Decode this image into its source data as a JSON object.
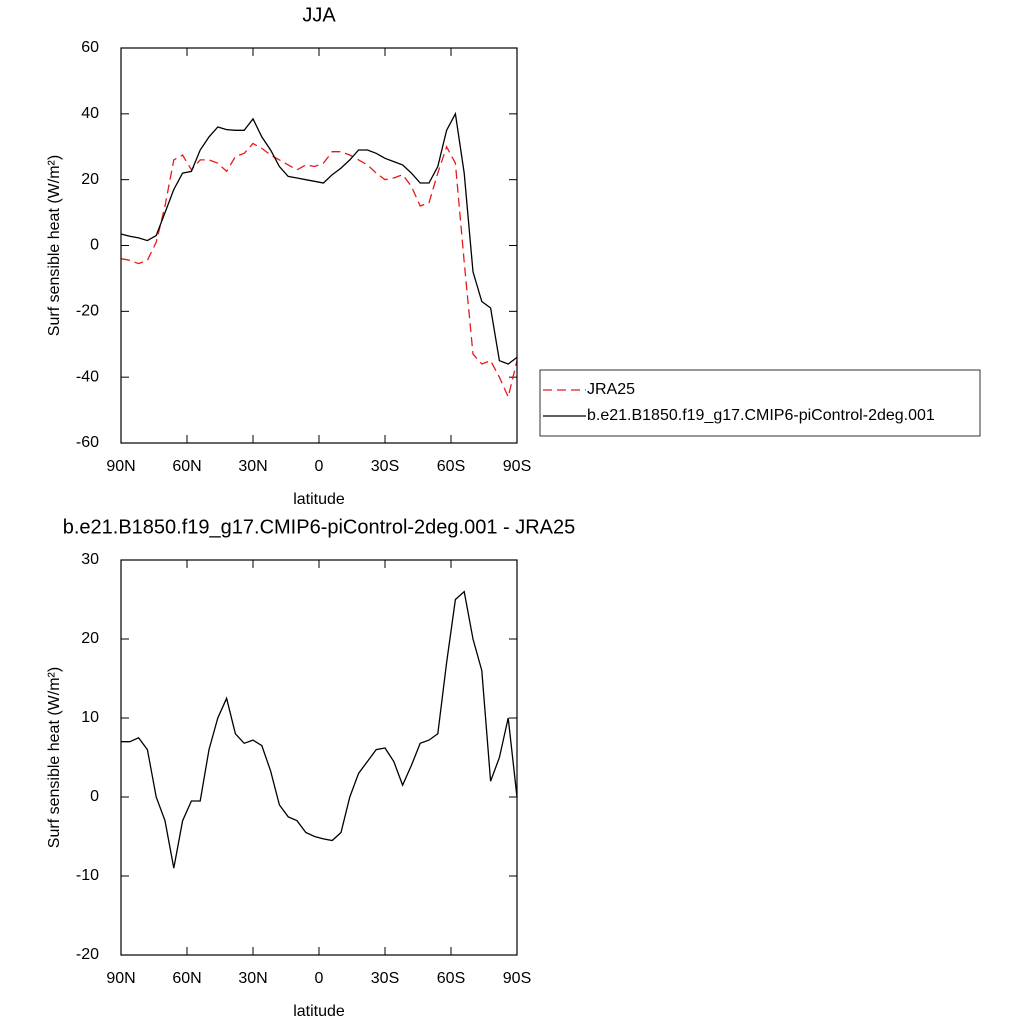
{
  "chart_data": [
    {
      "type": "line",
      "title": "JJA",
      "xlabel": "latitude",
      "ylabel": "Surf sensible heat (W/m²)",
      "x": [
        90,
        86,
        82,
        78,
        74,
        70,
        66,
        62,
        58,
        54,
        50,
        46,
        42,
        38,
        34,
        30,
        26,
        22,
        18,
        14,
        10,
        6,
        2,
        -2,
        -6,
        -10,
        -14,
        -18,
        -22,
        -26,
        -30,
        -34,
        -38,
        -42,
        -46,
        -50,
        -54,
        -58,
        -62,
        -66,
        -70,
        -74,
        -78,
        -82,
        -86,
        -90
      ],
      "series": [
        {
          "name": "JRA25",
          "color": "#e8191b",
          "line_style": "dashed",
          "values": [
            -4,
            -4.5,
            -5.5,
            -4.5,
            1,
            12,
            26,
            27.5,
            23,
            26,
            26,
            25,
            22.5,
            27,
            28,
            31,
            29.5,
            27.5,
            26,
            24.5,
            23,
            24.5,
            24,
            25,
            28.5,
            28.5,
            27.5,
            26,
            24.5,
            22,
            20,
            20.5,
            21.5,
            18,
            12,
            13,
            22,
            30,
            25,
            -5,
            -33,
            -36,
            -35,
            -40,
            -46,
            -35
          ]
        },
        {
          "name": "b.e21.B1850.f19_g17.CMIP6-piControl-2deg.001",
          "color": "#000000",
          "line_style": "solid",
          "values": [
            3.5,
            2.8,
            2.3,
            1.5,
            3,
            10,
            17,
            22,
            22.5,
            29,
            33,
            36,
            35.2,
            35,
            35,
            38.5,
            33,
            29,
            24,
            21,
            20.5,
            20,
            19.5,
            19,
            21.5,
            23.5,
            26,
            29,
            29,
            28,
            26.5,
            25.5,
            24.5,
            22,
            19,
            19,
            24,
            35,
            40,
            22,
            -8,
            -17,
            -19,
            -35,
            -36,
            -34
          ]
        }
      ],
      "xlim": [
        90,
        -90
      ],
      "xticks": [
        {
          "value": 90,
          "label": "90N"
        },
        {
          "value": 60,
          "label": "60N"
        },
        {
          "value": 30,
          "label": "30N"
        },
        0,
        {
          "value": -30,
          "label": "30S"
        },
        {
          "value": -60,
          "label": "60S"
        },
        {
          "value": -90,
          "label": "90S"
        }
      ],
      "ylim": [
        -60,
        60
      ],
      "yticks": [
        -60,
        -40,
        -20,
        0,
        20,
        40,
        60
      ],
      "legend": "right"
    },
    {
      "type": "line",
      "title": "b.e21.B1850.f19_g17.CMIP6-piControl-2deg.001 - JRA25",
      "xlabel": "latitude",
      "ylabel": "Surf sensible heat (W/m²)",
      "x": [
        90,
        86,
        82,
        78,
        74,
        70,
        66,
        62,
        58,
        54,
        50,
        46,
        42,
        38,
        34,
        30,
        26,
        22,
        18,
        14,
        10,
        6,
        2,
        -2,
        -6,
        -10,
        -14,
        -18,
        -22,
        -26,
        -30,
        -34,
        -38,
        -42,
        -46,
        -50,
        -54,
        -58,
        -62,
        -66,
        -70,
        -74,
        -78,
        -82,
        -86,
        -90
      ],
      "series": [
        {
          "color": "#000000",
          "line_style": "solid",
          "values": [
            7,
            7,
            7.5,
            6,
            0,
            -3,
            -9,
            -3,
            -0.5,
            -0.5,
            6,
            10,
            12.5,
            8,
            6.8,
            7.2,
            6.5,
            3.3,
            -1,
            -2.5,
            -3,
            -4.5,
            -5,
            -5.3,
            -5.5,
            -4.5,
            0,
            3,
            4.5,
            6,
            6.2,
            4.5,
            1.5,
            4,
            6.8,
            7.2,
            8,
            17,
            25,
            26,
            20,
            16,
            2,
            5,
            10,
            0
          ]
        }
      ],
      "xlim": [
        90,
        -90
      ],
      "xticks": [
        {
          "value": 90,
          "label": "90N"
        },
        {
          "value": 60,
          "label": "60N"
        },
        {
          "value": 30,
          "label": "30N"
        },
        0,
        {
          "value": -30,
          "label": "30S"
        },
        {
          "value": -60,
          "label": "60S"
        },
        {
          "value": -90,
          "label": "90S"
        }
      ],
      "ylim": [
        -20,
        30
      ],
      "yticks": [
        -20,
        -10,
        0,
        10,
        20,
        30
      ]
    }
  ]
}
